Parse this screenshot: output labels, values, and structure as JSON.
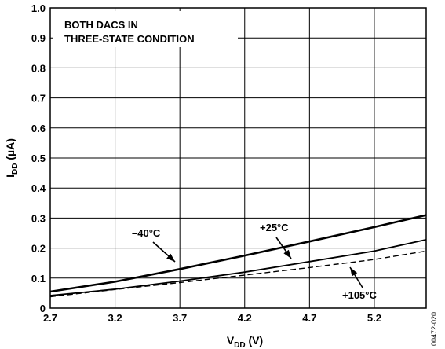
{
  "chart_data": {
    "type": "line",
    "xlabel": {
      "main": "V",
      "sub": "DD",
      "unit": " (V)"
    },
    "ylabel": {
      "main": "I",
      "sub": "DD",
      "unit": " (µA)"
    },
    "xlim": [
      2.7,
      5.6
    ],
    "ylim": [
      0,
      1.0
    ],
    "x_ticks": [
      2.7,
      3.2,
      3.7,
      4.2,
      4.7,
      5.2
    ],
    "y_ticks": [
      0,
      0.1,
      0.2,
      0.3,
      0.4,
      0.5,
      0.6,
      0.7,
      0.8,
      0.9,
      1.0
    ],
    "x_tick_labels": [
      "2.7",
      "3.2",
      "3.7",
      "4.2",
      "4.7",
      "5.2"
    ],
    "y_tick_labels": [
      "0",
      "0.1",
      "0.2",
      "0.3",
      "0.4",
      "0.5",
      "0.6",
      "0.7",
      "0.8",
      "0.9",
      "1.0"
    ],
    "grid": true,
    "annotation_box": [
      "BOTH DACS IN",
      "THREE-STATE CONDITION"
    ],
    "series": [
      {
        "name": "–40°C",
        "style": "thick",
        "x": [
          2.7,
          3.2,
          3.7,
          4.2,
          4.7,
          5.2,
          5.6
        ],
        "y": [
          0.055,
          0.088,
          0.13,
          0.175,
          0.222,
          0.27,
          0.31
        ]
      },
      {
        "name": "+25°C",
        "style": "solid",
        "x": [
          2.7,
          3.2,
          3.7,
          4.2,
          4.7,
          5.2,
          5.6
        ],
        "y": [
          0.042,
          0.063,
          0.09,
          0.12,
          0.155,
          0.19,
          0.228
        ]
      },
      {
        "name": "+105°C",
        "style": "dashed",
        "x": [
          2.7,
          3.2,
          3.7,
          4.2,
          4.7,
          5.2,
          5.6
        ],
        "y": [
          0.038,
          0.062,
          0.085,
          0.11,
          0.135,
          0.162,
          0.19
        ]
      }
    ],
    "figure_id": "00472-020"
  }
}
